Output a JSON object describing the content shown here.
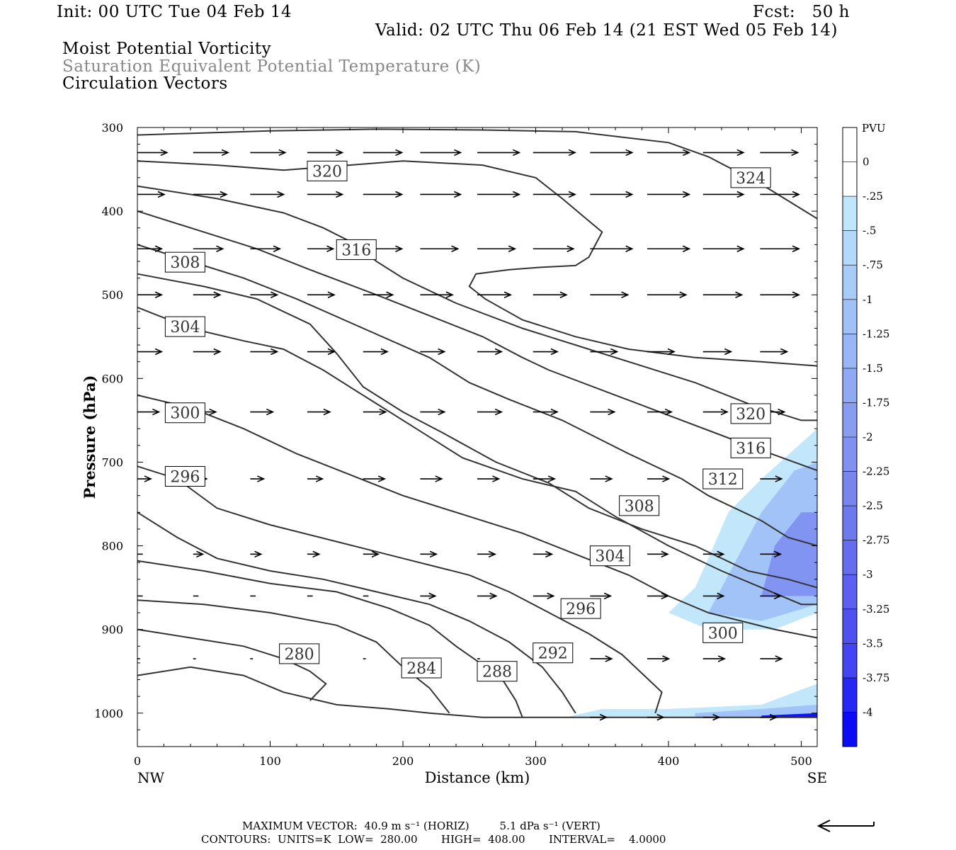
{
  "header": {
    "init": "Init: 00 UTC Tue 04 Feb 14",
    "fcst": "Fcst:   50 h",
    "valid": "Valid: 02 UTC Thu 06 Feb 14 (21 EST Wed 05 Feb 14)",
    "line1": "Moist Potential Vorticity",
    "line2": "Saturation Equivalent Potential Temperature (K)",
    "line3": "Circulation Vectors"
  },
  "footer": {
    "max_vector": "MAXIMUM VECTOR:  40.9 m s⁻¹ (HORIZ)         5.1 dPa s⁻¹ (VERT)",
    "contours": "CONTOURS:  UNITS=K  LOW=  280.00       HIGH=  408.00       INTERVAL=    4.0000"
  },
  "colors": {
    "contour": "#333333",
    "pv_light": "#bfe6fb",
    "pv_mid": "#9fb8f3",
    "pv_dark": "#7d86ee",
    "pv_deep": "#3a3af0"
  },
  "chart_data": {
    "type": "cross-section",
    "xlabel": "Distance (km)",
    "ylabel": "Pressure (hPa)",
    "xlim": [
      0,
      512
    ],
    "ylim": [
      1040,
      300
    ],
    "x_ticks": [
      0,
      100,
      200,
      300,
      400,
      500
    ],
    "y_ticks": [
      300,
      400,
      500,
      600,
      700,
      800,
      900,
      1000
    ],
    "x_end_labels": {
      "left": "NW",
      "right": "SE"
    },
    "colorbar": {
      "title": "PVU",
      "levels": [
        "0",
        "-.25",
        "-.5",
        "-.75",
        "-1",
        "-1.25",
        "-1.5",
        "-1.75",
        "-2",
        "-2.25",
        "-2.5",
        "-2.75",
        "-3",
        "-3.25",
        "-3.5",
        "-3.75",
        "-4"
      ],
      "colors": [
        "#ffffff",
        "#ffffff",
        "#bfe6fb",
        "#b3d9fa",
        "#a8ccf8",
        "#a0c1f7",
        "#98b5f5",
        "#90a9f3",
        "#889df1",
        "#8091f0",
        "#7885ef",
        "#6f79ee",
        "#666cee",
        "#5c5fef",
        "#5050f0",
        "#4444f2",
        "#2626f5",
        "#0b0bf8"
      ]
    },
    "contour_labels": [
      {
        "label": "320",
        "x": 128,
        "p": 352
      },
      {
        "label": "324",
        "x": 447,
        "p": 360
      },
      {
        "label": "316",
        "x": 150,
        "p": 446
      },
      {
        "label": "308",
        "x": 21,
        "p": 461
      },
      {
        "label": "304",
        "x": 21,
        "p": 538
      },
      {
        "label": "300",
        "x": 21,
        "p": 641
      },
      {
        "label": "296",
        "x": 21,
        "p": 717
      },
      {
        "label": "320",
        "x": 447,
        "p": 642
      },
      {
        "label": "316",
        "x": 447,
        "p": 683
      },
      {
        "label": "312",
        "x": 426,
        "p": 720
      },
      {
        "label": "308",
        "x": 363,
        "p": 752
      },
      {
        "label": "304",
        "x": 341,
        "p": 812
      },
      {
        "label": "296",
        "x": 319,
        "p": 875
      },
      {
        "label": "300",
        "x": 426,
        "p": 904
      },
      {
        "label": "280",
        "x": 107,
        "p": 929
      },
      {
        "label": "284",
        "x": 199,
        "p": 946
      },
      {
        "label": "288",
        "x": 256,
        "p": 950
      },
      {
        "label": "292",
        "x": 298,
        "p": 928
      }
    ],
    "contours": [
      [
        [
          0,
          309
        ],
        [
          100,
          304
        ],
        [
          180,
          302
        ],
        [
          260,
          303
        ],
        [
          330,
          305
        ],
        [
          400,
          318
        ],
        [
          430,
          335
        ],
        [
          470,
          368
        ],
        [
          512,
          409
        ]
      ],
      [
        [
          0,
          340
        ],
        [
          60,
          345
        ],
        [
          110,
          351
        ],
        [
          160,
          345
        ],
        [
          200,
          340
        ],
        [
          260,
          345
        ],
        [
          300,
          360
        ],
        [
          320,
          385
        ],
        [
          335,
          405
        ],
        [
          350,
          425
        ],
        [
          340,
          455
        ],
        [
          330,
          465
        ],
        [
          305,
          467
        ],
        [
          280,
          470
        ],
        [
          255,
          475
        ],
        [
          250,
          490
        ],
        [
          262,
          505
        ],
        [
          290,
          530
        ],
        [
          330,
          550
        ],
        [
          370,
          565
        ],
        [
          420,
          575
        ],
        [
          470,
          580
        ],
        [
          512,
          585
        ]
      ],
      [
        [
          0,
          370
        ],
        [
          60,
          385
        ],
        [
          110,
          402
        ],
        [
          140,
          420
        ],
        [
          165,
          440
        ],
        [
          180,
          460
        ],
        [
          200,
          480
        ],
        [
          240,
          510
        ],
        [
          290,
          540
        ],
        [
          340,
          565
        ],
        [
          380,
          585
        ],
        [
          420,
          605
        ],
        [
          460,
          630
        ],
        [
          500,
          650
        ],
        [
          512,
          650
        ]
      ],
      [
        [
          0,
          400
        ],
        [
          50,
          425
        ],
        [
          90,
          445
        ],
        [
          130,
          470
        ],
        [
          180,
          500
        ],
        [
          220,
          525
        ],
        [
          260,
          550
        ],
        [
          290,
          575
        ],
        [
          310,
          590
        ],
        [
          360,
          620
        ],
        [
          410,
          650
        ],
        [
          460,
          680
        ],
        [
          512,
          710
        ]
      ],
      [
        [
          0,
          440
        ],
        [
          40,
          460
        ],
        [
          80,
          480
        ],
        [
          120,
          505
        ],
        [
          170,
          540
        ],
        [
          220,
          575
        ],
        [
          250,
          605
        ],
        [
          280,
          625
        ],
        [
          320,
          650
        ],
        [
          370,
          690
        ],
        [
          410,
          720
        ],
        [
          430,
          740
        ],
        [
          470,
          770
        ],
        [
          490,
          790
        ],
        [
          512,
          800
        ]
      ],
      [
        [
          0,
          475
        ],
        [
          50,
          490
        ],
        [
          90,
          505
        ],
        [
          130,
          535
        ],
        [
          150,
          570
        ],
        [
          170,
          610
        ],
        [
          200,
          640
        ],
        [
          230,
          665
        ],
        [
          270,
          700
        ],
        [
          310,
          725
        ],
        [
          340,
          755
        ],
        [
          380,
          780
        ],
        [
          420,
          800
        ],
        [
          460,
          830
        ],
        [
          490,
          840
        ],
        [
          512,
          850
        ]
      ],
      [
        [
          0,
          515
        ],
        [
          40,
          540
        ],
        [
          80,
          555
        ],
        [
          110,
          565
        ],
        [
          140,
          590
        ],
        [
          175,
          625
        ],
        [
          210,
          660
        ],
        [
          245,
          695
        ],
        [
          290,
          720
        ],
        [
          330,
          735
        ],
        [
          360,
          765
        ],
        [
          400,
          800
        ],
        [
          440,
          830
        ],
        [
          470,
          850
        ],
        [
          500,
          870
        ],
        [
          512,
          870
        ]
      ],
      [
        [
          0,
          620
        ],
        [
          40,
          635
        ],
        [
          80,
          660
        ],
        [
          120,
          690
        ],
        [
          160,
          715
        ],
        [
          200,
          740
        ],
        [
          250,
          765
        ],
        [
          290,
          785
        ],
        [
          330,
          810
        ],
        [
          370,
          835
        ],
        [
          400,
          860
        ],
        [
          430,
          880
        ],
        [
          480,
          900
        ],
        [
          512,
          910
        ]
      ],
      [
        [
          0,
          705
        ],
        [
          30,
          720
        ],
        [
          60,
          755
        ],
        [
          100,
          775
        ],
        [
          150,
          795
        ],
        [
          200,
          815
        ],
        [
          250,
          835
        ],
        [
          280,
          855
        ],
        [
          310,
          880
        ],
        [
          340,
          905
        ],
        [
          365,
          930
        ],
        [
          385,
          960
        ],
        [
          395,
          975
        ],
        [
          390,
          1000
        ]
      ],
      [
        [
          0,
          760
        ],
        [
          30,
          790
        ],
        [
          60,
          815
        ],
        [
          100,
          830
        ],
        [
          140,
          840
        ],
        [
          180,
          855
        ],
        [
          220,
          870
        ],
        [
          250,
          890
        ],
        [
          280,
          915
        ],
        [
          305,
          945
        ],
        [
          320,
          975
        ],
        [
          330,
          1000
        ]
      ],
      [
        [
          0,
          818
        ],
        [
          50,
          830
        ],
        [
          100,
          845
        ],
        [
          150,
          855
        ],
        [
          190,
          875
        ],
        [
          220,
          895
        ],
        [
          240,
          920
        ],
        [
          258,
          940
        ],
        [
          275,
          960
        ],
        [
          285,
          985
        ],
        [
          290,
          1005
        ]
      ],
      [
        [
          0,
          865
        ],
        [
          50,
          870
        ],
        [
          100,
          880
        ],
        [
          150,
          895
        ],
        [
          180,
          915
        ],
        [
          200,
          945
        ],
        [
          220,
          970
        ],
        [
          235,
          1000
        ]
      ],
      [
        [
          0,
          900
        ],
        [
          40,
          910
        ],
        [
          80,
          920
        ],
        [
          110,
          935
        ],
        [
          130,
          950
        ],
        [
          142,
          965
        ],
        [
          130,
          985
        ]
      ],
      [
        [
          0,
          955
        ],
        [
          40,
          945
        ],
        [
          80,
          955
        ],
        [
          110,
          975
        ],
        [
          150,
          990
        ],
        [
          190,
          995
        ],
        [
          220,
          1000
        ],
        [
          260,
          1005
        ],
        [
          512,
          1005
        ]
      ]
    ],
    "vectors_rows": [
      {
        "p": 330,
        "xs": [
          0,
          42,
          85,
          128,
          170,
          213,
          256,
          298,
          341,
          384,
          426,
          469
        ]
      },
      {
        "p": 380,
        "xs": [
          0,
          42,
          85,
          128,
          170,
          213,
          256,
          298,
          341,
          384,
          426,
          469
        ]
      },
      {
        "p": 445,
        "xs": [
          0,
          42,
          85,
          128,
          170,
          213,
          256,
          298,
          341,
          384,
          426,
          469
        ]
      },
      {
        "p": 500,
        "xs": [
          0,
          42,
          85,
          128,
          170,
          213,
          256,
          298,
          341,
          384,
          426,
          469
        ]
      },
      {
        "p": 568,
        "xs": [
          0,
          42,
          85,
          128,
          170,
          213,
          256,
          298,
          341,
          384,
          426,
          469
        ]
      },
      {
        "p": 640,
        "xs": [
          0,
          42,
          85,
          128,
          170,
          213,
          256,
          298,
          341,
          384,
          426,
          469
        ]
      },
      {
        "p": 720,
        "xs": [
          0,
          42,
          85,
          128,
          170,
          213,
          256,
          298,
          341,
          384,
          426,
          469
        ]
      },
      {
        "p": 810,
        "xs": [
          0,
          42,
          85,
          128,
          170,
          213,
          256,
          298,
          341,
          384,
          426,
          469
        ]
      },
      {
        "p": 860,
        "xs": [
          0,
          42,
          85,
          128,
          170,
          213,
          256,
          298,
          341,
          384,
          426,
          469
        ]
      },
      {
        "p": 935,
        "xs": [
          0,
          42,
          85,
          128,
          170,
          213,
          256,
          298,
          341,
          384,
          426,
          469
        ]
      },
      {
        "p": 1005,
        "xs": [
          341,
          384,
          426,
          469
        ]
      }
    ],
    "vector_lengths": [
      [
        0.55,
        0.65,
        0.65,
        0.65,
        0.72,
        0.75,
        0.78,
        0.78,
        0.78,
        0.78,
        0.75,
        0.7
      ],
      [
        0.5,
        0.62,
        0.62,
        0.65,
        0.72,
        0.75,
        0.78,
        0.78,
        0.78,
        0.78,
        0.75,
        0.72
      ],
      [
        0.45,
        0.55,
        0.55,
        0.48,
        0.72,
        0.7,
        0.7,
        0.75,
        0.78,
        0.78,
        0.75,
        0.72
      ],
      [
        0.45,
        0.5,
        0.5,
        0.5,
        0.55,
        0.6,
        0.62,
        0.62,
        0.7,
        0.72,
        0.72,
        0.72
      ],
      [
        0.45,
        0.5,
        0.5,
        0.5,
        0.45,
        0.45,
        0.45,
        0.45,
        0.5,
        0.5,
        0.52,
        0.5
      ],
      [
        0.4,
        0.42,
        0.42,
        0.42,
        0.42,
        0.45,
        0.45,
        0.45,
        0.45,
        0.45,
        0.45,
        0.45
      ],
      [
        0.25,
        0.25,
        0.25,
        0.28,
        0.4,
        0.4,
        0.4,
        0.4,
        0.4,
        0.4,
        0.4,
        0.4
      ],
      [
        0.1,
        0.18,
        0.2,
        0.22,
        0.28,
        0.3,
        0.33,
        0.35,
        0.38,
        0.38,
        0.38,
        0.38
      ],
      [
        0.1,
        0.1,
        0.1,
        0.1,
        0.1,
        0.28,
        0.35,
        0.38,
        0.38,
        0.38,
        0.38,
        0.38
      ],
      [
        0.05,
        0.05,
        0.05,
        0.05,
        0.05,
        0.05,
        0.05,
        0.05,
        0.4,
        0.4,
        0.4,
        0.4
      ],
      [
        0.3,
        0.3,
        0.3,
        0.3
      ]
    ],
    "pv_regions": [
      {
        "level": "-.25",
        "poly": [
          [
            322,
            1005
          ],
          [
            350,
            995
          ],
          [
            400,
            995
          ],
          [
            470,
            990
          ],
          [
            512,
            965
          ],
          [
            512,
            1005
          ]
        ]
      },
      {
        "level": "-1",
        "poly": [
          [
            420,
            1000
          ],
          [
            470,
            995
          ],
          [
            512,
            990
          ],
          [
            512,
            1005
          ],
          [
            420,
            1005
          ]
        ]
      },
      {
        "level": "-4",
        "poly": [
          [
            470,
            1003
          ],
          [
            512,
            1000
          ],
          [
            512,
            1005
          ],
          [
            470,
            1005
          ]
        ]
      },
      {
        "level": "-.25",
        "poly": [
          [
            400,
            880
          ],
          [
            420,
            850
          ],
          [
            430,
            815
          ],
          [
            445,
            760
          ],
          [
            470,
            720
          ],
          [
            512,
            660
          ],
          [
            512,
            880
          ],
          [
            480,
            900
          ],
          [
            430,
            900
          ]
        ]
      },
      {
        "level": "-1",
        "poly": [
          [
            430,
            880
          ],
          [
            450,
            820
          ],
          [
            470,
            760
          ],
          [
            495,
            710
          ],
          [
            512,
            700
          ],
          [
            512,
            870
          ],
          [
            470,
            890
          ]
        ]
      },
      {
        "level": "-2",
        "poly": [
          [
            470,
            860
          ],
          [
            480,
            800
          ],
          [
            500,
            760
          ],
          [
            512,
            760
          ],
          [
            512,
            860
          ]
        ]
      }
    ]
  }
}
